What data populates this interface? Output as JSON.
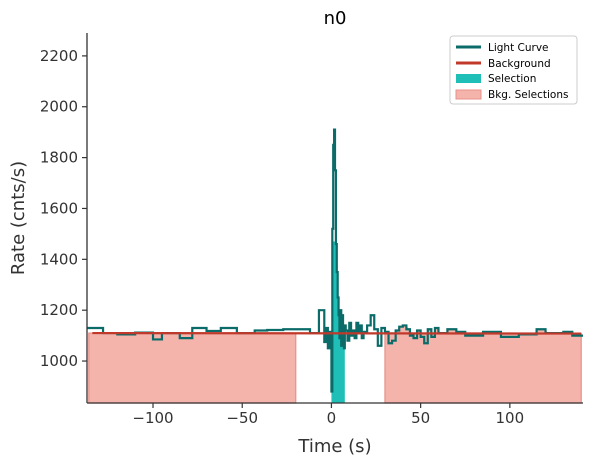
{
  "chart_data": {
    "type": "line",
    "title": "n0",
    "xlabel": "Time (s)",
    "ylabel": "Rate (cnts/s)",
    "xlim": [
      -137,
      141
    ],
    "ylim": [
      835,
      2290
    ],
    "xticks": [
      -100,
      -50,
      0,
      50,
      100
    ],
    "yticks": [
      1000,
      1200,
      1400,
      1600,
      1800,
      2000,
      2200
    ],
    "grid": false,
    "legend_position": "top-right",
    "colors": {
      "light_curve": "#0b6b68",
      "background": "#c0392b",
      "selection": "#1fbfb8",
      "bkg_selection_fill": "#f4b4ac",
      "bkg_selection_edge": "#e89088",
      "axis": "#333333"
    },
    "legend": [
      "Light Curve",
      "Background",
      "Selection",
      "Bkg. Selections"
    ],
    "background_line": {
      "name": "Background",
      "x": [
        -137,
        141
      ],
      "y": [
        1110,
        1108
      ]
    },
    "bkg_selections": [
      {
        "x0": -136,
        "x1": -20
      },
      {
        "x0": 30,
        "x1": 140
      }
    ],
    "selection": {
      "x0": 0,
      "x1": 7.5
    },
    "light_curve": {
      "name": "Light Curve",
      "step_x": [
        -137,
        -128,
        -120,
        -110,
        -100,
        -95,
        -85,
        -78,
        -70,
        -62,
        -53,
        -43,
        -36,
        -27,
        -12,
        -7,
        -4,
        -3,
        -2,
        -1,
        0,
        0.5,
        1,
        1.5,
        2,
        2.5,
        3,
        3.5,
        4,
        4.5,
        5,
        5.5,
        6,
        6.5,
        7,
        7.5,
        8,
        9,
        10,
        11,
        12,
        13,
        14,
        15,
        16,
        17,
        18,
        20,
        22,
        24,
        26,
        28,
        30,
        32,
        34,
        36,
        38,
        40,
        42,
        44,
        46,
        48,
        50,
        52,
        54,
        56,
        58,
        60,
        65,
        70,
        75,
        85,
        95,
        105,
        115,
        120,
        125,
        130,
        135,
        141
      ],
      "step_y": [
        1130,
        1110,
        1105,
        1112,
        1085,
        1110,
        1090,
        1130,
        1118,
        1130,
        1110,
        1120,
        1122,
        1125,
        1110,
        1200,
        1075,
        1130,
        1050,
        1115,
        880,
        1520,
        1850,
        1910,
        1750,
        1460,
        1350,
        1250,
        1180,
        1090,
        1200,
        1060,
        1180,
        1130,
        1050,
        1140,
        1120,
        1080,
        1150,
        1100,
        1120,
        1090,
        1150,
        1110,
        1140,
        1090,
        1115,
        1140,
        1180,
        1125,
        1060,
        1130,
        1115,
        1070,
        1080,
        1120,
        1135,
        1140,
        1125,
        1100,
        1090,
        1120,
        1095,
        1070,
        1125,
        1095,
        1130,
        1110,
        1125,
        1115,
        1100,
        1115,
        1095,
        1105,
        1125,
        1110,
        1110,
        1115,
        1100,
        1100
      ]
    }
  }
}
